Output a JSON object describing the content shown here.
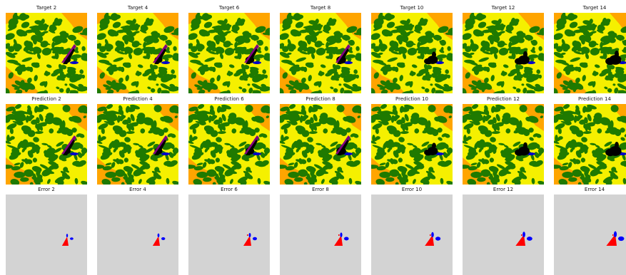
{
  "figure": {
    "rows": [
      {
        "label": "Target",
        "kind": "map",
        "panels": [
          "Target 2",
          "Target 4",
          "Target 6",
          "Target 8",
          "Target 10",
          "Target 12",
          "Target 14"
        ]
      },
      {
        "label": "Prediction",
        "kind": "map",
        "panels": [
          "Prediction 2",
          "Prediction 4",
          "Prediction 6",
          "Prediction 8",
          "Prediction 10",
          "Prediction 12",
          "Prediction 14"
        ]
      },
      {
        "label": "Error",
        "kind": "error",
        "panels": [
          "Error 2",
          "Error 4",
          "Error 6",
          "Error 8",
          "Error 10",
          "Error 12",
          "Error 14"
        ]
      }
    ],
    "steps": [
      2,
      4,
      6,
      8,
      10,
      12,
      14
    ],
    "colors": {
      "vegetation_dense": "#1f7a00",
      "vegetation_light": "#f5f000",
      "open_land": "#ffa500",
      "burned": "#000000",
      "fire_front": "#800080",
      "water": "#0000cc",
      "error_background": "#d3d3d3",
      "error_missed": "#ff0000",
      "error_false": "#0000ff"
    }
  }
}
